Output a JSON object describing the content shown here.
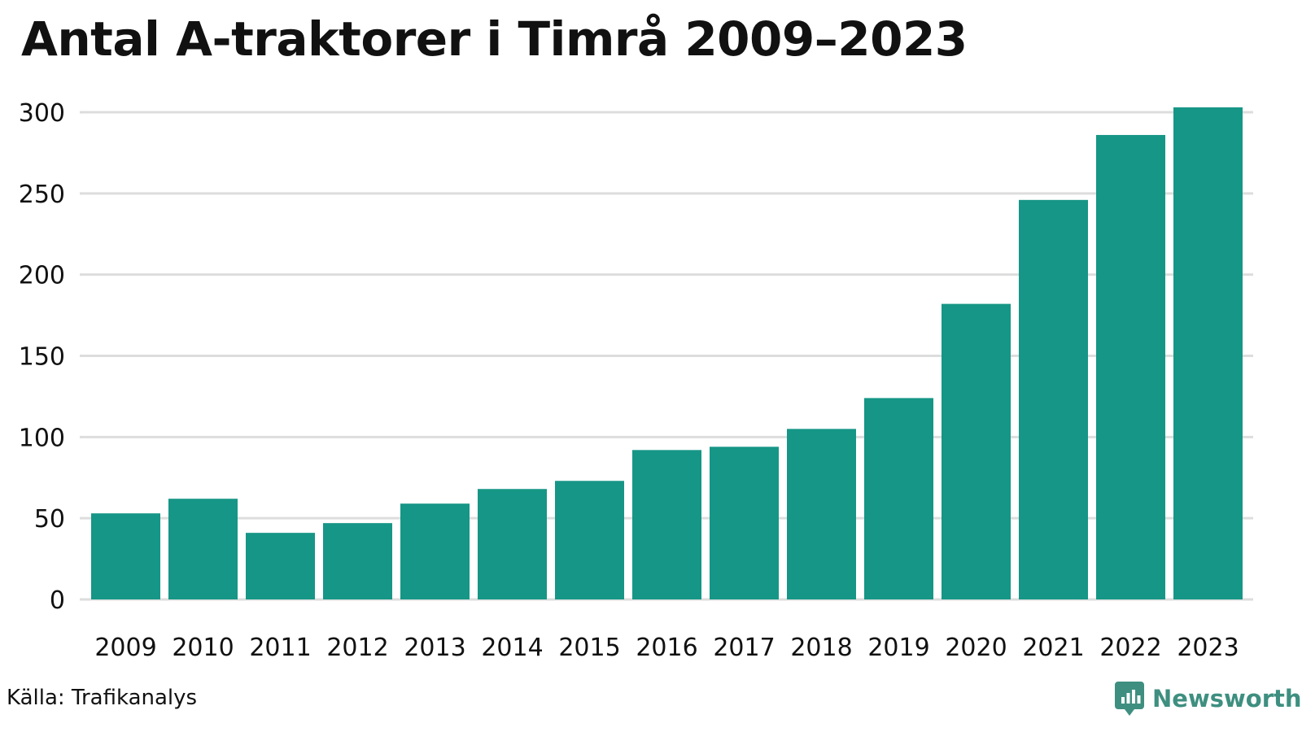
{
  "chart_data": {
    "type": "bar",
    "title": "Antal A-traktorer i Timrå 2009–2023",
    "xlabel": "",
    "ylabel": "",
    "categories": [
      "2009",
      "2010",
      "2011",
      "2012",
      "2013",
      "2014",
      "2015",
      "2016",
      "2017",
      "2018",
      "2019",
      "2020",
      "2021",
      "2022",
      "2023"
    ],
    "values": [
      53,
      62,
      41,
      47,
      59,
      68,
      73,
      92,
      94,
      105,
      124,
      182,
      246,
      286,
      303
    ],
    "ylim": [
      0,
      300
    ],
    "yticks": [
      0,
      50,
      100,
      150,
      200,
      250,
      300
    ],
    "ytick_labels": [
      "0",
      "50",
      "100",
      "150",
      "200",
      "250",
      "300"
    ],
    "grid": true,
    "bar_color": "#169686",
    "grid_color": "#dddddd"
  },
  "footer": {
    "source": "Källa: Trafikanalys",
    "brand": "Newsworthy",
    "brand_icon": "bar-chart-badge-icon",
    "brand_color": "#3e8f80"
  }
}
